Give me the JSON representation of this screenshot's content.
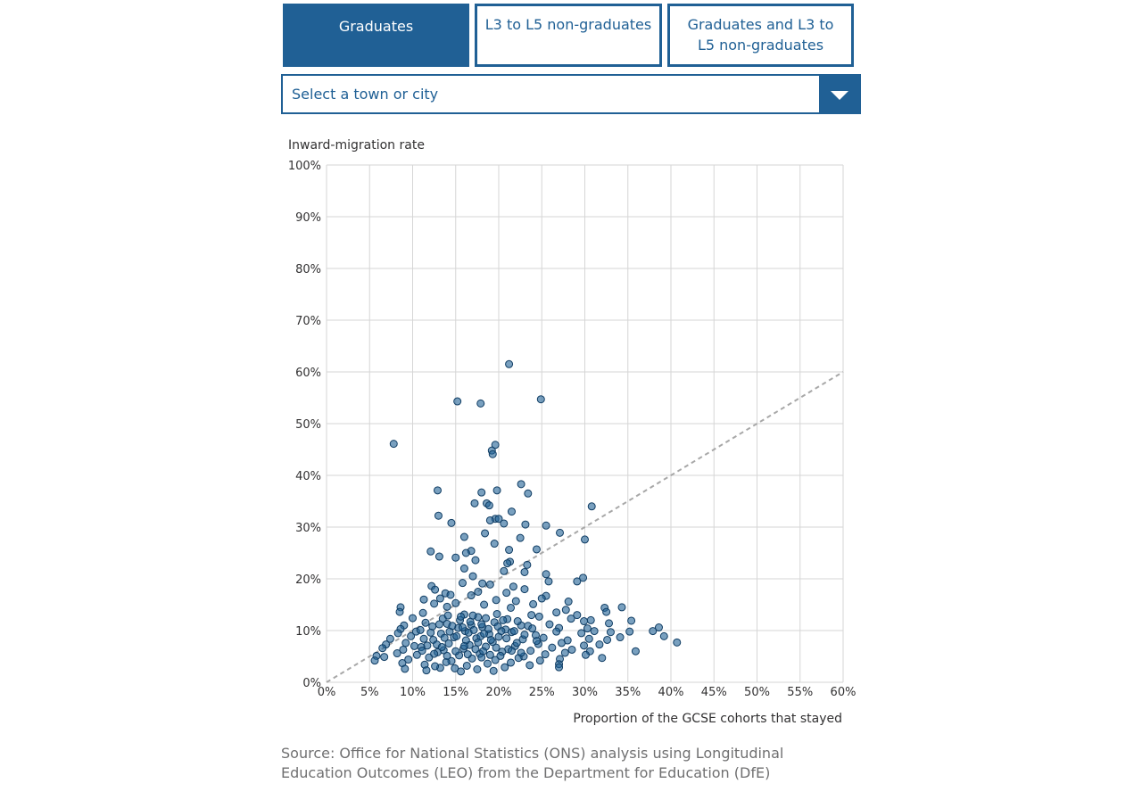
{
  "tabs": [
    {
      "label": "Graduates",
      "active": true
    },
    {
      "label": "L3 to L5 non-graduates",
      "active": false
    },
    {
      "label": "Graduates and L3 to L5 non-graduates",
      "active": false
    }
  ],
  "select": {
    "placeholder": "Select a town or city"
  },
  "chart_data": {
    "type": "scatter",
    "title": "",
    "ylabel": "Inward-migration rate",
    "xlabel": "Proportion of the GCSE cohorts that stayed",
    "xlim": [
      0,
      60
    ],
    "ylim": [
      0,
      100
    ],
    "x_ticks": [
      "0%",
      "5%",
      "10%",
      "15%",
      "20%",
      "25%",
      "30%",
      "35%",
      "40%",
      "45%",
      "50%",
      "55%",
      "60%"
    ],
    "y_ticks": [
      "0%",
      "10%",
      "20%",
      "30%",
      "40%",
      "50%",
      "60%",
      "70%",
      "80%",
      "90%",
      "100%"
    ],
    "grid": true,
    "reference_line": {
      "style": "dashed",
      "from": [
        0,
        0
      ],
      "to": [
        60,
        60
      ]
    },
    "point_color": "#206095",
    "series": [
      {
        "points": [
          [
            21.2,
            61.5
          ],
          [
            24.9,
            54.7
          ],
          [
            15.2,
            54.3
          ],
          [
            17.9,
            53.9
          ],
          [
            7.8,
            46.1
          ],
          [
            19.6,
            45.9
          ],
          [
            19.2,
            44.8
          ],
          [
            19.3,
            44.1
          ],
          [
            22.6,
            38.3
          ],
          [
            12.9,
            37.1
          ],
          [
            19.8,
            37.1
          ],
          [
            18.0,
            36.7
          ],
          [
            23.4,
            36.5
          ],
          [
            17.2,
            34.6
          ],
          [
            18.6,
            34.6
          ],
          [
            18.9,
            34.2
          ],
          [
            30.8,
            34.0
          ],
          [
            21.5,
            33.0
          ],
          [
            13.0,
            32.2
          ],
          [
            19.6,
            31.6
          ],
          [
            20.0,
            31.6
          ],
          [
            19.0,
            31.3
          ],
          [
            14.5,
            30.8
          ],
          [
            20.6,
            30.7
          ],
          [
            23.1,
            30.5
          ],
          [
            25.5,
            30.3
          ],
          [
            27.1,
            28.9
          ],
          [
            18.4,
            28.8
          ],
          [
            16.0,
            28.1
          ],
          [
            22.5,
            27.9
          ],
          [
            30.0,
            27.6
          ],
          [
            19.5,
            26.8
          ],
          [
            24.4,
            25.7
          ],
          [
            21.2,
            25.6
          ],
          [
            12.1,
            25.3
          ],
          [
            16.8,
            25.4
          ],
          [
            16.2,
            25.0
          ],
          [
            15.0,
            24.1
          ],
          [
            13.1,
            24.3
          ],
          [
            17.3,
            23.6
          ],
          [
            21.3,
            23.3
          ],
          [
            21.0,
            23.0
          ],
          [
            23.3,
            22.7
          ],
          [
            16.0,
            22.0
          ],
          [
            20.6,
            21.5
          ],
          [
            23.0,
            21.3
          ],
          [
            17.0,
            20.5
          ],
          [
            25.5,
            20.9
          ],
          [
            29.8,
            20.2
          ],
          [
            29.1,
            19.5
          ],
          [
            25.8,
            19.5
          ],
          [
            15.8,
            19.2
          ],
          [
            18.1,
            19.1
          ],
          [
            12.2,
            18.6
          ],
          [
            19.0,
            18.9
          ],
          [
            21.7,
            18.5
          ],
          [
            23.0,
            18.0
          ],
          [
            12.6,
            17.9
          ],
          [
            17.6,
            17.5
          ],
          [
            20.9,
            17.3
          ],
          [
            13.8,
            17.2
          ],
          [
            14.4,
            16.9
          ],
          [
            16.8,
            16.8
          ],
          [
            25.5,
            16.7
          ],
          [
            25.0,
            16.2
          ],
          [
            11.3,
            16.0
          ],
          [
            13.2,
            16.2
          ],
          [
            19.7,
            15.9
          ],
          [
            22.0,
            15.7
          ],
          [
            28.1,
            15.6
          ],
          [
            12.5,
            15.2
          ],
          [
            15.0,
            15.3
          ],
          [
            18.3,
            15.0
          ],
          [
            24.0,
            15.1
          ],
          [
            8.6,
            14.5
          ],
          [
            14.0,
            14.6
          ],
          [
            21.4,
            14.4
          ],
          [
            27.8,
            14.0
          ],
          [
            32.3,
            14.4
          ],
          [
            34.3,
            14.5
          ],
          [
            8.5,
            13.6
          ],
          [
            11.2,
            13.4
          ],
          [
            16.0,
            13.1
          ],
          [
            19.8,
            13.2
          ],
          [
            23.8,
            13.0
          ],
          [
            26.7,
            13.5
          ],
          [
            29.1,
            13.0
          ],
          [
            32.5,
            13.6
          ],
          [
            10.0,
            12.4
          ],
          [
            13.5,
            12.3
          ],
          [
            15.5,
            12.0
          ],
          [
            17.6,
            12.6
          ],
          [
            21.0,
            12.2
          ],
          [
            24.7,
            12.7
          ],
          [
            28.4,
            12.3
          ],
          [
            30.7,
            12.0
          ],
          [
            35.4,
            11.9
          ],
          [
            9.0,
            11.0
          ],
          [
            11.5,
            11.5
          ],
          [
            14.0,
            11.3
          ],
          [
            16.8,
            11.1
          ],
          [
            19.5,
            11.6
          ],
          [
            22.6,
            11.0
          ],
          [
            25.9,
            11.2
          ],
          [
            29.9,
            11.8
          ],
          [
            32.8,
            11.4
          ],
          [
            8.6,
            10.3
          ],
          [
            12.3,
            10.8
          ],
          [
            15.3,
            10.5
          ],
          [
            18.1,
            10.7
          ],
          [
            20.8,
            10.2
          ],
          [
            23.4,
            10.9
          ],
          [
            27.0,
            10.5
          ],
          [
            30.3,
            10.4
          ],
          [
            37.9,
            9.9
          ],
          [
            38.6,
            10.6
          ],
          [
            8.3,
            9.5
          ],
          [
            10.4,
            9.8
          ],
          [
            13.3,
            9.4
          ],
          [
            16.1,
            9.9
          ],
          [
            18.9,
            9.3
          ],
          [
            21.5,
            9.7
          ],
          [
            24.3,
            9.1
          ],
          [
            26.7,
            9.8
          ],
          [
            29.6,
            9.5
          ],
          [
            31.1,
            9.9
          ],
          [
            33.0,
            9.7
          ],
          [
            35.2,
            9.8
          ],
          [
            7.4,
            8.4
          ],
          [
            9.8,
            8.9
          ],
          [
            12.4,
            8.2
          ],
          [
            14.8,
            8.7
          ],
          [
            17.4,
            8.5
          ],
          [
            20.0,
            8.8
          ],
          [
            22.8,
            8.3
          ],
          [
            25.2,
            8.6
          ],
          [
            28.0,
            8.1
          ],
          [
            30.5,
            8.4
          ],
          [
            32.6,
            8.2
          ],
          [
            34.1,
            8.7
          ],
          [
            39.2,
            8.9
          ],
          [
            40.7,
            7.7
          ],
          [
            6.9,
            7.3
          ],
          [
            9.2,
            7.6
          ],
          [
            11.7,
            7.1
          ],
          [
            14.2,
            7.5
          ],
          [
            16.6,
            7.2
          ],
          [
            19.3,
            7.8
          ],
          [
            21.9,
            7.0
          ],
          [
            24.6,
            7.4
          ],
          [
            27.3,
            7.6
          ],
          [
            29.9,
            7.1
          ],
          [
            31.7,
            7.3
          ],
          [
            6.5,
            6.6
          ],
          [
            8.9,
            6.3
          ],
          [
            11.0,
            6.8
          ],
          [
            13.6,
            6.2
          ],
          [
            15.9,
            6.5
          ],
          [
            18.5,
            6.9
          ],
          [
            21.1,
            6.4
          ],
          [
            23.7,
            6.1
          ],
          [
            26.2,
            6.7
          ],
          [
            28.5,
            6.3
          ],
          [
            30.6,
            6.0
          ],
          [
            35.9,
            6.0
          ],
          [
            5.8,
            5.1
          ],
          [
            8.2,
            5.6
          ],
          [
            10.5,
            5.3
          ],
          [
            12.9,
            5.8
          ],
          [
            15.4,
            5.2
          ],
          [
            17.8,
            5.5
          ],
          [
            20.4,
            5.9
          ],
          [
            22.9,
            5.0
          ],
          [
            25.4,
            5.4
          ],
          [
            27.7,
            5.7
          ],
          [
            30.1,
            5.3
          ],
          [
            32.0,
            4.7
          ],
          [
            6.7,
            4.9
          ],
          [
            9.5,
            4.4
          ],
          [
            11.9,
            4.8
          ],
          [
            14.5,
            4.1
          ],
          [
            16.9,
            4.6
          ],
          [
            19.6,
            4.3
          ],
          [
            22.3,
            4.7
          ],
          [
            24.8,
            4.2
          ],
          [
            27.1,
            4.5
          ],
          [
            5.6,
            4.2
          ],
          [
            8.8,
            3.7
          ],
          [
            11.4,
            3.4
          ],
          [
            13.9,
            3.9
          ],
          [
            16.3,
            3.2
          ],
          [
            18.7,
            3.6
          ],
          [
            21.4,
            3.8
          ],
          [
            23.6,
            3.3
          ],
          [
            27.0,
            3.5
          ],
          [
            9.1,
            2.6
          ],
          [
            11.6,
            2.3
          ],
          [
            13.2,
            2.8
          ],
          [
            15.6,
            2.1
          ],
          [
            17.5,
            2.5
          ],
          [
            19.4,
            2.2
          ],
          [
            20.7,
            2.9
          ],
          [
            27.0,
            2.9
          ],
          [
            12.6,
            3.1
          ],
          [
            14.9,
            2.7
          ],
          [
            16.5,
            9.6
          ],
          [
            17.1,
            10.1
          ],
          [
            17.9,
            8.9
          ],
          [
            18.3,
            9.4
          ],
          [
            16.2,
            8.1
          ],
          [
            17.6,
            7.7
          ],
          [
            18.8,
            10.3
          ],
          [
            15.8,
            10.6
          ],
          [
            16.7,
            11.7
          ],
          [
            18.0,
            11.2
          ],
          [
            19.1,
            8.2
          ],
          [
            15.1,
            8.9
          ],
          [
            14.3,
            9.8
          ],
          [
            20.3,
            9.9
          ],
          [
            19.9,
            10.8
          ],
          [
            17.3,
            6.4
          ],
          [
            16.0,
            7.0
          ],
          [
            18.2,
            6.0
          ],
          [
            19.7,
            6.7
          ],
          [
            15.0,
            6.0
          ],
          [
            14.6,
            10.9
          ],
          [
            13.7,
            8.6
          ],
          [
            20.9,
            8.5
          ],
          [
            21.8,
            9.9
          ],
          [
            22.2,
            11.8
          ],
          [
            13.1,
            11.2
          ],
          [
            12.1,
            9.6
          ],
          [
            12.8,
            7.3
          ],
          [
            22.1,
            7.6
          ],
          [
            23.0,
            9.2
          ],
          [
            17.0,
            12.9
          ],
          [
            18.5,
            12.4
          ],
          [
            15.6,
            12.7
          ],
          [
            20.5,
            12.0
          ],
          [
            14.1,
            12.9
          ],
          [
            10.9,
            10.1
          ],
          [
            11.3,
            8.4
          ],
          [
            10.2,
            7.0
          ],
          [
            23.9,
            10.4
          ],
          [
            24.4,
            8.0
          ],
          [
            16.4,
            5.4
          ],
          [
            18.0,
            4.8
          ],
          [
            19.0,
            5.3
          ],
          [
            14.0,
            5.1
          ],
          [
            20.2,
            5.1
          ],
          [
            13.4,
            6.8
          ],
          [
            21.5,
            6.1
          ],
          [
            12.5,
            5.5
          ],
          [
            22.6,
            5.7
          ],
          [
            11.1,
            6.1
          ]
        ]
      }
    ]
  },
  "source": {
    "text": "Source: Office for National Statistics (ONS) analysis using Longitudinal Education Outcomes (LEO) from the Department for Education (DfE)"
  }
}
